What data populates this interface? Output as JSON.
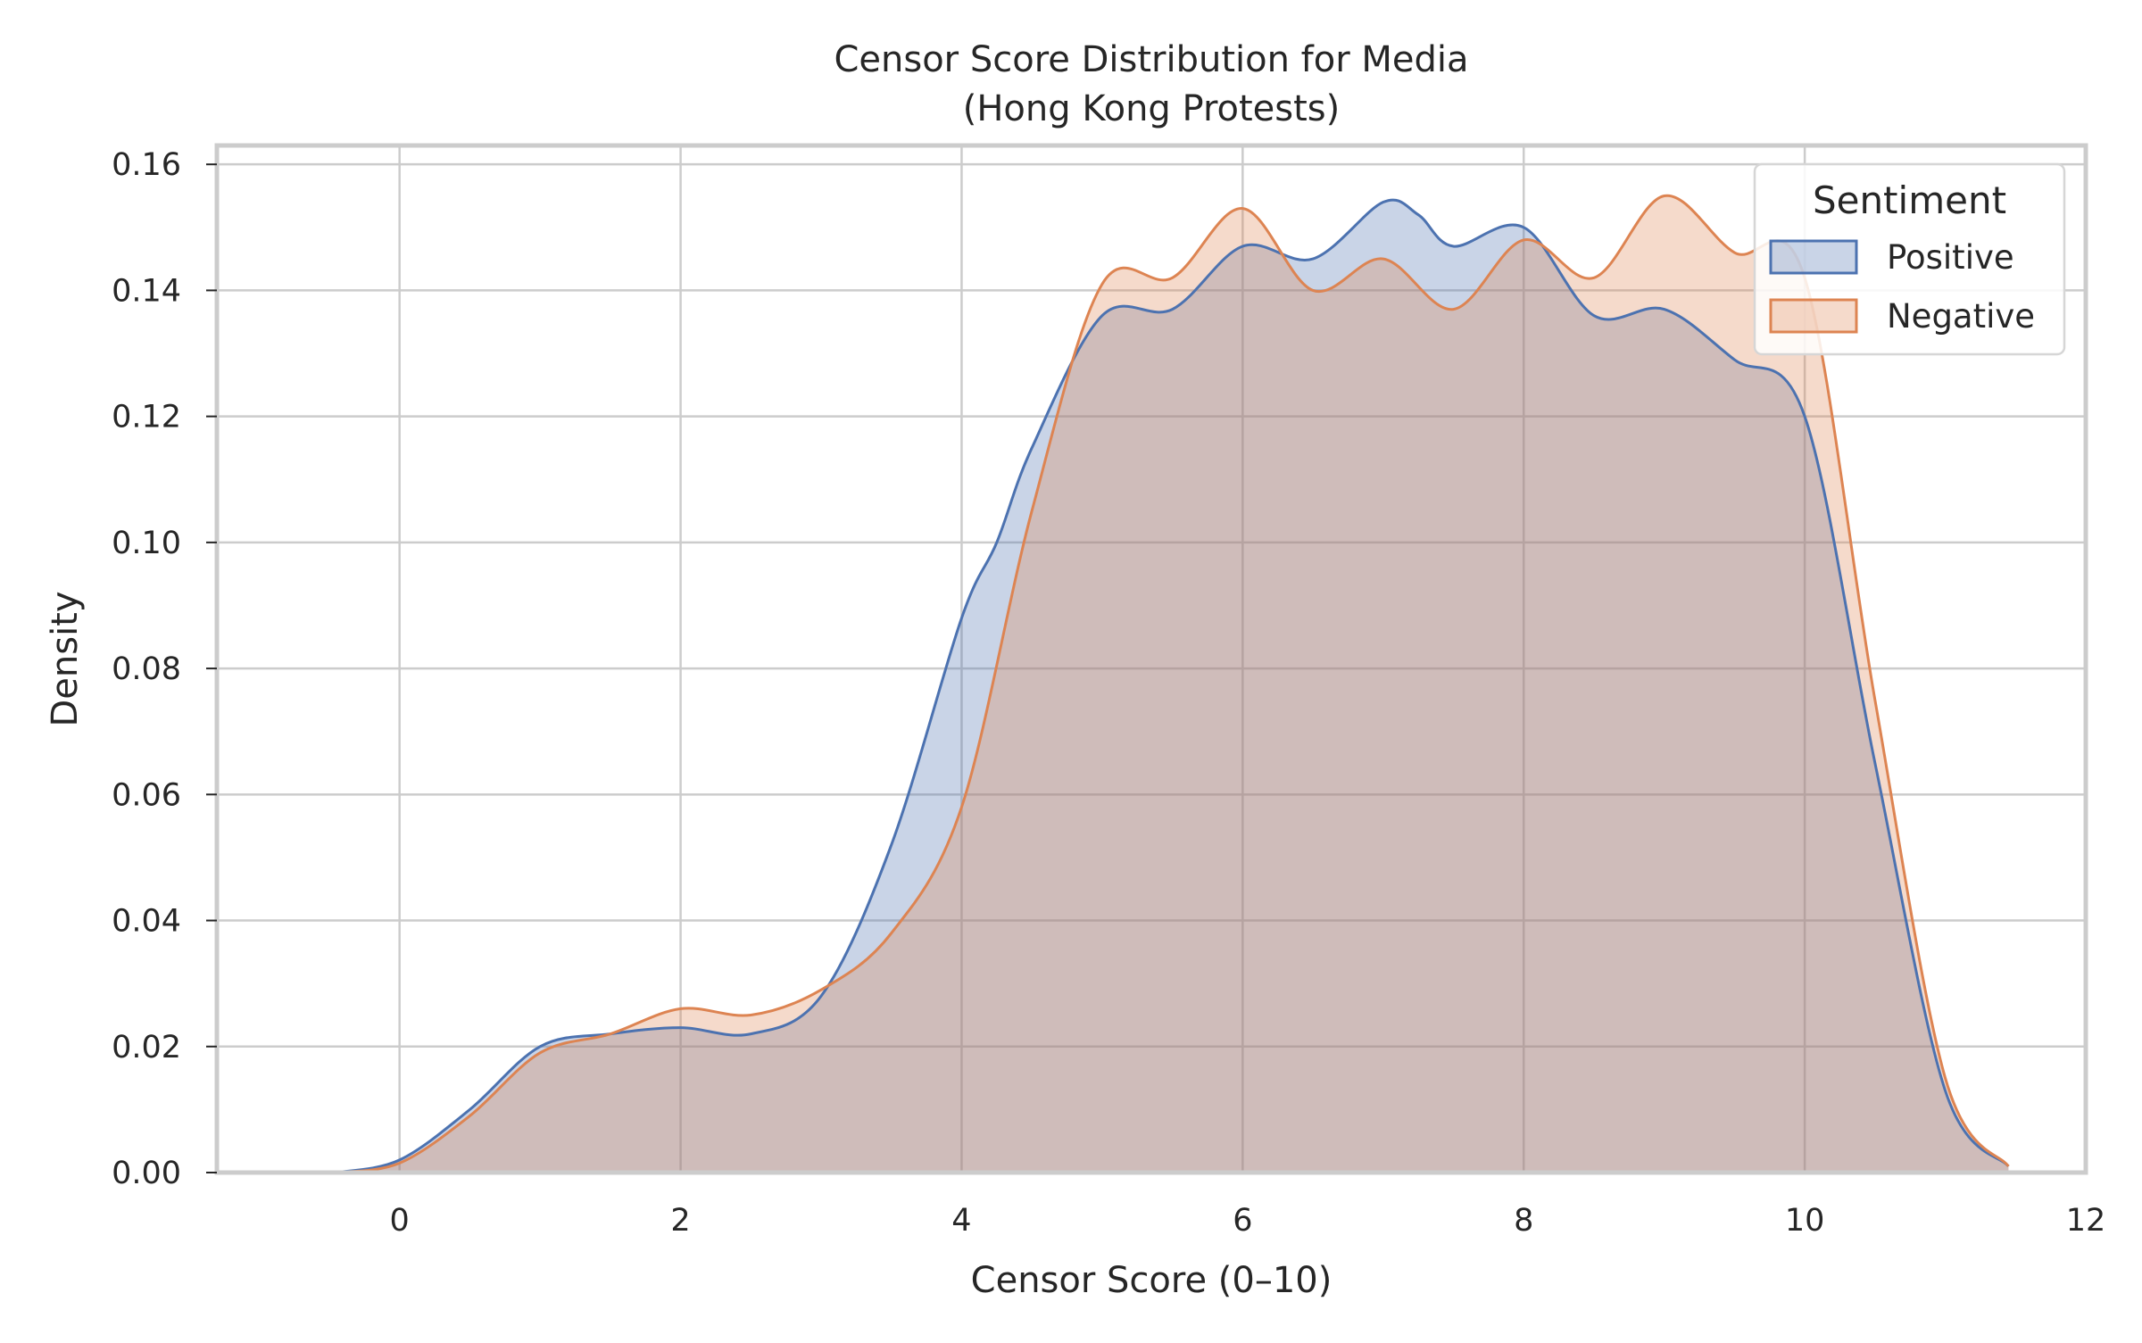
{
  "chart_data": {
    "type": "area",
    "title": "Censor Score Distribution for Media\n(Hong Kong Protests)",
    "title_lines": [
      "Censor Score Distribution for Media",
      "(Hong Kong Protests)"
    ],
    "xlabel": "Censor Score (0–10)",
    "ylabel": "Density",
    "xlim": [
      -1.3,
      12
    ],
    "ylim": [
      0,
      0.163
    ],
    "xticks": [
      0,
      2,
      4,
      6,
      8,
      10,
      12
    ],
    "xtick_labels": [
      "0",
      "2",
      "4",
      "6",
      "8",
      "10",
      "12"
    ],
    "yticks": [
      0,
      0.02,
      0.04,
      0.06,
      0.08,
      0.1,
      0.12,
      0.14,
      0.16
    ],
    "ytick_labels": [
      "0.00",
      "0.02",
      "0.04",
      "0.06",
      "0.08",
      "0.10",
      "0.12",
      "0.14",
      "0.16"
    ],
    "grid": true,
    "legend": {
      "title": "Sentiment",
      "position": "top-right"
    },
    "series": [
      {
        "name": "Positive",
        "color": "#4c72b0",
        "x": [
          -0.45,
          0,
          0.5,
          1,
          1.5,
          2,
          2.5,
          3,
          3.5,
          4,
          4.25,
          4.5,
          5,
          5.5,
          6,
          6.5,
          7,
          7.25,
          7.5,
          8,
          8.5,
          9,
          9.5,
          10,
          10.5,
          11,
          11.45
        ],
        "y": [
          0,
          0.002,
          0.01,
          0.02,
          0.022,
          0.023,
          0.022,
          0.028,
          0.052,
          0.088,
          0.1,
          0.115,
          0.136,
          0.137,
          0.147,
          0.145,
          0.154,
          0.152,
          0.147,
          0.15,
          0.136,
          0.137,
          0.129,
          0.12,
          0.065,
          0.013,
          0.001
        ]
      },
      {
        "name": "Negative",
        "color": "#dd8452",
        "x": [
          -0.45,
          0,
          0.5,
          1,
          1.5,
          2,
          2.5,
          3,
          3.5,
          4,
          4.5,
          5,
          5.5,
          6,
          6.5,
          7,
          7.5,
          8,
          8.5,
          9,
          9.5,
          10,
          10.5,
          11,
          11.45
        ],
        "y": [
          0,
          0.0015,
          0.009,
          0.019,
          0.022,
          0.026,
          0.025,
          0.029,
          0.038,
          0.058,
          0.105,
          0.141,
          0.142,
          0.153,
          0.14,
          0.145,
          0.137,
          0.148,
          0.142,
          0.155,
          0.146,
          0.142,
          0.075,
          0.015,
          0.001
        ]
      }
    ]
  }
}
